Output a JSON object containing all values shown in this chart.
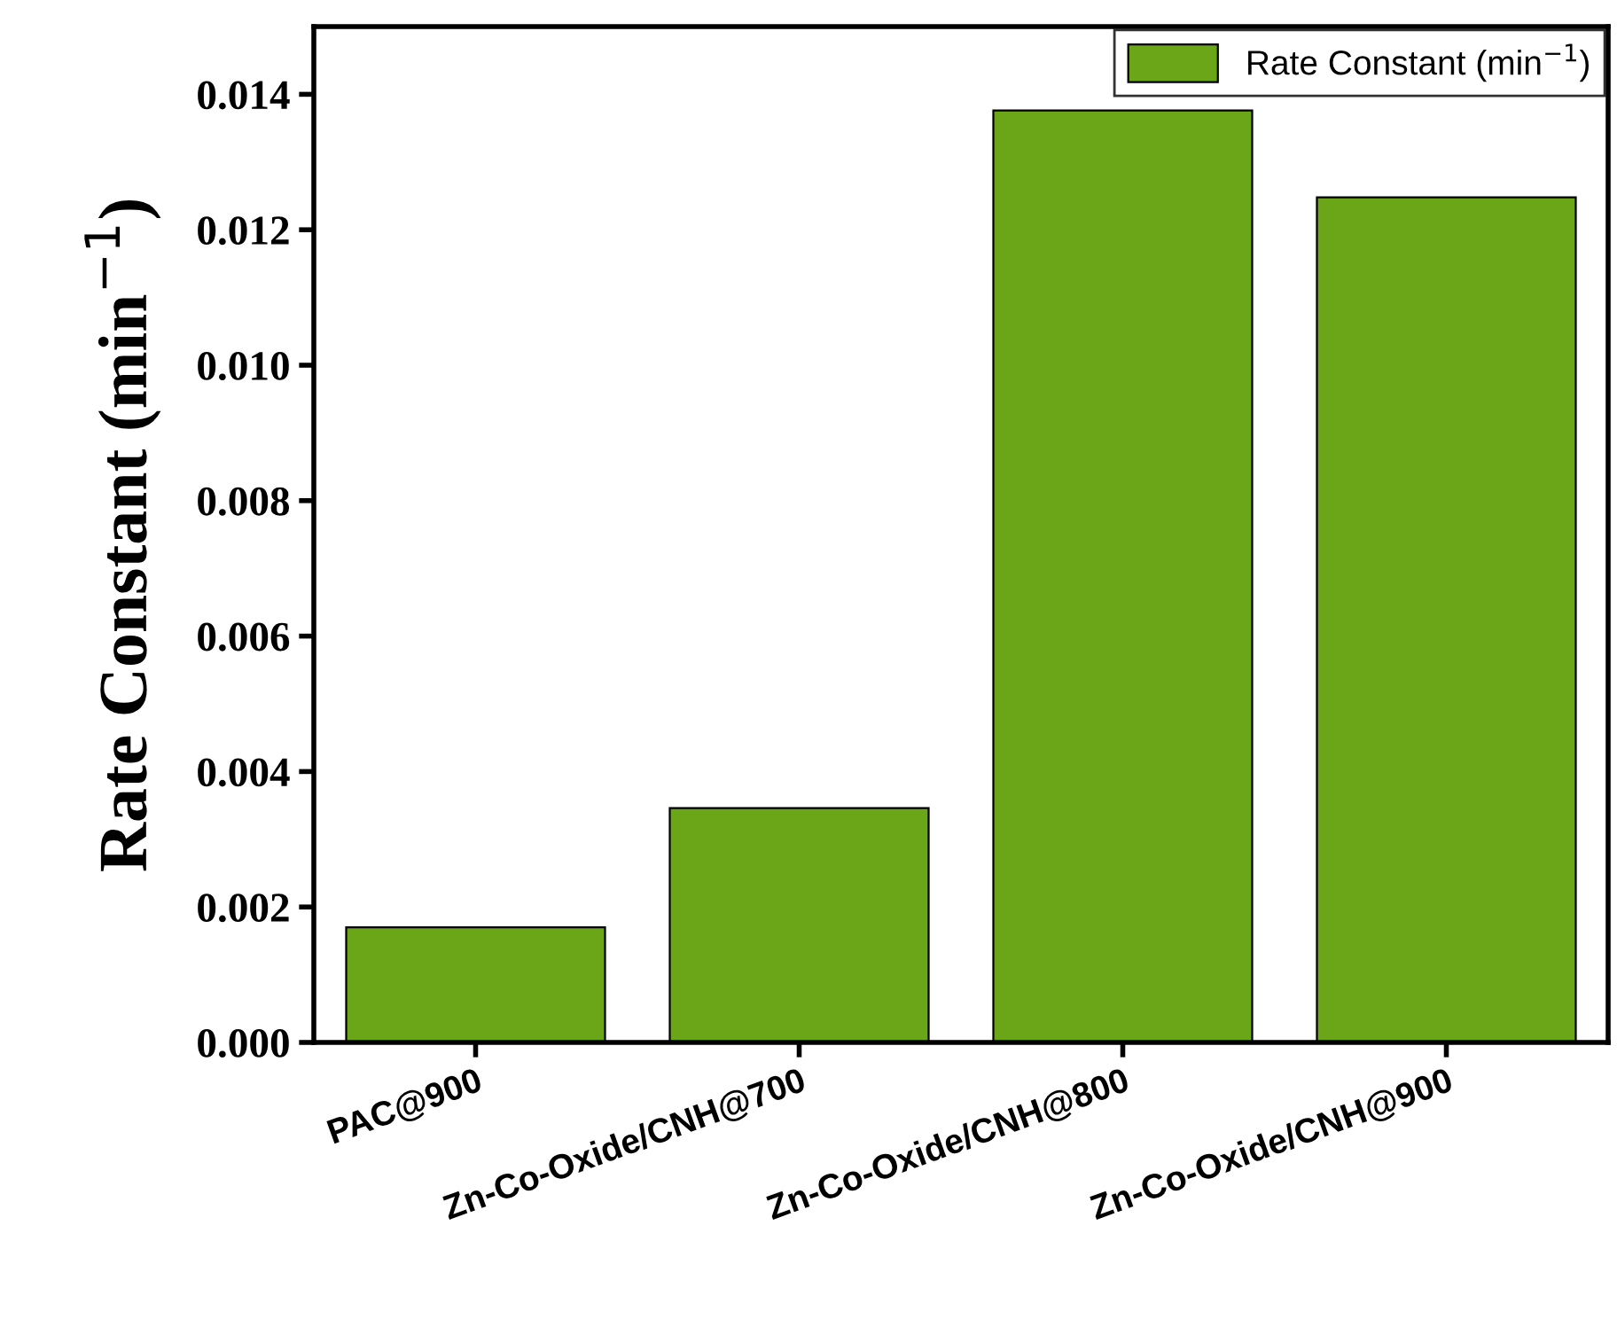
{
  "chart_data": {
    "type": "bar",
    "categories": [
      "PAC@900",
      "Zn-Co-Oxide/CNH@700",
      "Zn-Co-Oxide/CNH@800",
      "Zn-Co-Oxide/CNH@900"
    ],
    "series": [
      {
        "name": "Rate Constant (min$^{−1}$)",
        "color": "#6aa618",
        "values": [
          0.0017,
          0.00346,
          0.01376,
          0.01248
        ]
      }
    ],
    "ylabel": "Rate Constant (min$^{−1}$)",
    "ylim": [
      0,
      0.015
    ],
    "yticks": [
      {
        "value": 0,
        "label": "0.000"
      },
      {
        "value": 0.002,
        "label": "0.002"
      },
      {
        "value": 0.004,
        "label": "0.004"
      },
      {
        "value": 0.006,
        "label": "0.006"
      },
      {
        "value": 0.008,
        "label": "0.008"
      },
      {
        "value": 0.01,
        "label": "0.010"
      },
      {
        "value": 0.012,
        "label": "0.012"
      },
      {
        "value": 0.014,
        "label": "0.014"
      }
    ],
    "grid": false,
    "legend": "top right"
  }
}
